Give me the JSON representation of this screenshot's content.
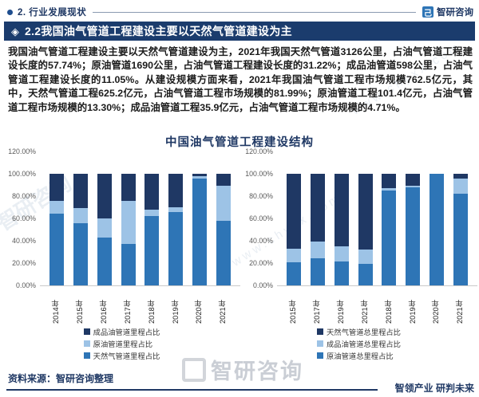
{
  "icons": {
    "diamond": "◈",
    "bullet": "●",
    "brand_glyph": "己"
  },
  "header": {
    "section_label": "2. 行业发展现状",
    "brand_name": "智研咨询"
  },
  "title_bar": {
    "text": "2.2我国油气管道工程建设主要以天然气管道建设为主"
  },
  "paragraph": "我国油气管道工程建设主要以天然气管道建设为主，2021年我国天然气管道3126公里，占油气管道工程建设长度的57.74%；原油管道1690公里，占油气管道工程建设长度的31.22%；成品油管道598公里，占油气管道工程建设长度的11.05%。从建设规模方面来看，2021年我国油气管道工程市场规模762.5亿元，其中，天然气管道工程625.2亿元，占油气管道工程市场规模的81.99%；原油管道工程101.4亿元，占油气管道工程市场规模的13.30%；成品油管道工程35.9亿元，占油气管道工程市场规模的4.71%。",
  "chart_data": [
    {
      "type": "bar",
      "stacked": true,
      "title": "中国油气管道工程建设结构",
      "categories": [
        "2014年",
        "2015年",
        "2016年",
        "2017年",
        "2018年",
        "2019年",
        "2020年",
        "2021年"
      ],
      "series": [
        {
          "name": "天然气管道里程占比",
          "color": "#2E75B6",
          "values": [
            64,
            56,
            43,
            37,
            62,
            66,
            96,
            57.74
          ]
        },
        {
          "name": "原油管道里程占比",
          "color": "#9DC3E6",
          "values": [
            12,
            13,
            17,
            39,
            6,
            4,
            2,
            31.22
          ]
        },
        {
          "name": "成品油管道里程占比",
          "color": "#1F3864",
          "values": [
            24,
            31,
            40,
            24,
            32,
            30,
            2,
            11.05
          ]
        }
      ],
      "legend": [
        {
          "label": "成品油管道里程占比",
          "color": "#1F3864"
        },
        {
          "label": "原油管道里程占比",
          "color": "#9DC3E6"
        },
        {
          "label": "天然气管道里程占比",
          "color": "#2E75B6"
        }
      ],
      "ylim": [
        0,
        120
      ],
      "yticks": [
        "120.00%",
        "100.00%",
        "80.00%",
        "60.00%",
        "40.00%",
        "20.00%",
        "0.00%"
      ],
      "grid": false,
      "legend_position": "bottom"
    },
    {
      "type": "bar",
      "stacked": true,
      "title": "",
      "categories": [
        "2015年",
        "2017年",
        "2019年",
        "2021年",
        "2018年",
        "2019年",
        "2020年",
        "2021年"
      ],
      "series": [
        {
          "name": "原油管道总里程占比",
          "color": "#2E75B6",
          "values": [
            21,
            24,
            21.5,
            19,
            85,
            88,
            100,
            82
          ]
        },
        {
          "name": "成品油管道总里程占比",
          "color": "#9DC3E6",
          "values": [
            12,
            15,
            13.5,
            13,
            2.5,
            1.5,
            0,
            13.5
          ]
        },
        {
          "name": "天然气管道总里程占比",
          "color": "#1F3864",
          "values": [
            67,
            61,
            65,
            68,
            12.5,
            10.5,
            0,
            4.5
          ]
        }
      ],
      "legend": [
        {
          "label": "天然气管道总里程占比",
          "color": "#1F3864"
        },
        {
          "label": "成品油管道总里程占比",
          "color": "#9DC3E6"
        },
        {
          "label": "原油管道总里程占比",
          "color": "#2E75B6"
        }
      ],
      "ylim": [
        0,
        120
      ],
      "yticks": [
        "120.00%",
        "100.00%",
        "80.00%",
        "60.00%",
        "40.00%",
        "20.00%",
        "0.00%"
      ],
      "grid": false,
      "legend_position": "bottom"
    }
  ],
  "colors": {
    "navy": "#1F3864",
    "title_bar_bg": "#1B3C6D",
    "medium_blue": "#2E75B6",
    "light_blue": "#9DC3E6"
  },
  "footer": {
    "source": "资料来源：智研咨询整理",
    "tagline": "智领产业 研判未来"
  },
  "watermarks": {
    "brand": "智研咨询",
    "site": "www.chyxx.com"
  }
}
